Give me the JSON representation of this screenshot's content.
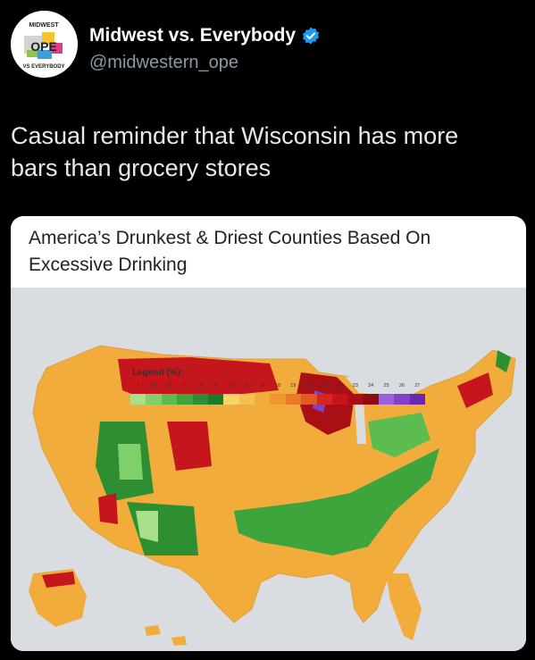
{
  "post": {
    "display_name": "Midwest vs. Everybody",
    "handle": "@midwestern_ope",
    "avatar_text": {
      "top": "MIDWEST",
      "center": "OPE",
      "bottom": "VS EVERYBODY"
    },
    "text_line1": "Casual reminder that Wisconsin has more",
    "text_line2": "bars than grocery stores",
    "verified_color": "#1d9bf0"
  },
  "card": {
    "title_line1": "America’s Drunkest & Driest Counties Based On",
    "title_line2": "Excessive Drinking",
    "legend_title": "Legend (%):",
    "legend_ticks": [
      "9",
      "10",
      "11",
      "12",
      "13",
      "14",
      "15",
      "16",
      "17",
      "18",
      "19",
      "20",
      "21",
      "22",
      "23",
      "24",
      "25",
      "26",
      "27"
    ],
    "legend_colors": [
      "#a8e08a",
      "#7fcf6a",
      "#5cbc4f",
      "#3ea53c",
      "#2d8f32",
      "#1f7a28",
      "#f7d46b",
      "#f5c04e",
      "#f2ac3c",
      "#ee972f",
      "#e87a28",
      "#e15a22",
      "#d7261e",
      "#c4161c",
      "#a90f14",
      "#8d0c10",
      "#9b5fe0",
      "#8440c8",
      "#6a28b0"
    ]
  }
}
